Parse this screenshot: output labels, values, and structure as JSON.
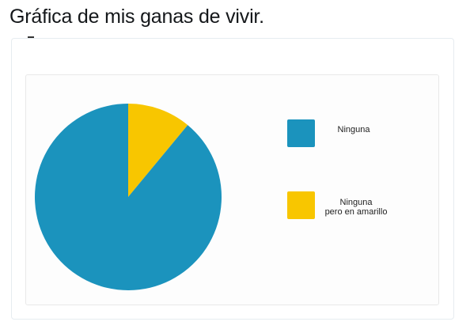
{
  "post": {
    "title": "Gráfica de mis ganas de vivir."
  },
  "chart_data": {
    "type": "pie",
    "title": "",
    "categories": [
      "Ninguna",
      "Ninguna pero en amarillo"
    ],
    "values": [
      89,
      11
    ],
    "colors": [
      "#1b93bd",
      "#f8c600"
    ],
    "legend_lines": [
      [
        "Ninguna"
      ],
      [
        "Ninguna",
        "pero en amarillo"
      ]
    ],
    "start_angle_deg": 0,
    "legend_placement": "right"
  }
}
